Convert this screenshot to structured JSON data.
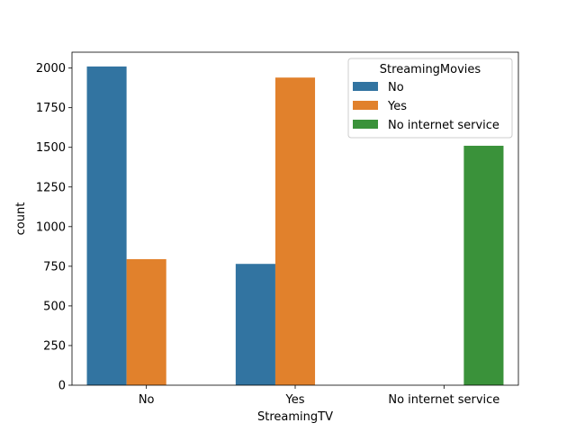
{
  "chart_data": {
    "type": "bar",
    "title": "",
    "xlabel": "StreamingTV",
    "ylabel": "count",
    "categories": [
      "No",
      "Yes",
      "No internet service"
    ],
    "series": [
      {
        "name": "No",
        "color": "#3274a1",
        "values": [
          2010,
          765,
          0
        ]
      },
      {
        "name": "Yes",
        "color": "#e1812c",
        "values": [
          795,
          1940,
          0
        ]
      },
      {
        "name": "No internet service",
        "color": "#3a923a",
        "values": [
          0,
          0,
          1510
        ]
      }
    ],
    "ylim": [
      0,
      2100
    ],
    "yticks": [
      0,
      250,
      500,
      750,
      1000,
      1250,
      1500,
      1750,
      2000
    ],
    "grid": false,
    "legend": {
      "title": "StreamingMovies",
      "placement": "top-right"
    }
  }
}
